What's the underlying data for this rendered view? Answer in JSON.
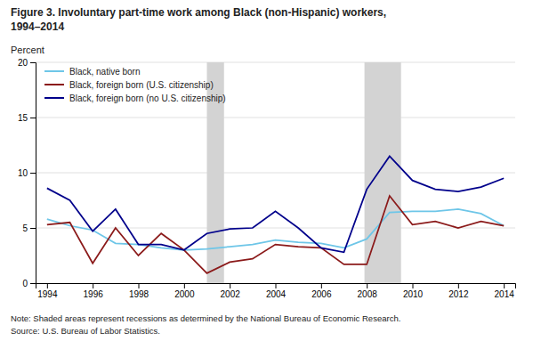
{
  "chart_data": {
    "type": "line",
    "title": [
      "Figure 3. Involuntary part-time work among Black (non-Hispanic) workers,",
      "1994–2014"
    ],
    "y_label": "Percent",
    "annotations": [
      "Note: Shaded areas represent recessions as determined by the National Bureau of Economic Research.",
      "Source: U.S. Bureau  of Labor Statistics."
    ],
    "x": [
      1994,
      1995,
      1996,
      1997,
      1998,
      1999,
      2000,
      2001,
      2002,
      2003,
      2004,
      2005,
      2006,
      2007,
      2008,
      2009,
      2010,
      2011,
      2012,
      2013,
      2014
    ],
    "series": [
      {
        "name": "Black, native born",
        "color": "#6EC6E8",
        "values": [
          5.8,
          5.2,
          4.8,
          3.6,
          3.5,
          3.2,
          3.0,
          3.1,
          3.3,
          3.5,
          3.9,
          3.7,
          3.6,
          3.2,
          4.0,
          6.4,
          6.5,
          6.5,
          6.7,
          6.3,
          5.2
        ]
      },
      {
        "name": "Black, foreign born (U.S. citizenship)",
        "color": "#8B1A1A",
        "values": [
          5.3,
          5.5,
          1.8,
          5.0,
          2.5,
          4.5,
          3.0,
          0.9,
          1.9,
          2.2,
          3.5,
          3.3,
          3.2,
          1.7,
          1.7,
          7.9,
          5.3,
          5.6,
          5.0,
          5.6,
          5.2
        ]
      },
      {
        "name": "Black, foreign born (no U.S. citizenship)",
        "color": "#00008B",
        "values": [
          8.6,
          7.5,
          4.7,
          6.7,
          3.5,
          3.5,
          3.0,
          4.5,
          4.9,
          5.0,
          6.5,
          5.0,
          3.2,
          2.8,
          8.5,
          11.5,
          9.3,
          8.5,
          8.3,
          8.7,
          9.5
        ]
      }
    ],
    "bands": [
      {
        "start": 2001,
        "end": 2001.75,
        "color": "#d3d3d3"
      },
      {
        "start": 2007.9,
        "end": 2009.5,
        "color": "#d3d3d3"
      }
    ],
    "xlim": [
      1993.5,
      2014.5
    ],
    "xticks": [
      1994,
      1996,
      1998,
      2000,
      2002,
      2004,
      2006,
      2008,
      2010,
      2012,
      2014
    ],
    "ylim": [
      0,
      20
    ],
    "yticks": [
      0,
      5,
      10,
      15,
      20
    ],
    "grid": true,
    "legend": "upper left"
  }
}
